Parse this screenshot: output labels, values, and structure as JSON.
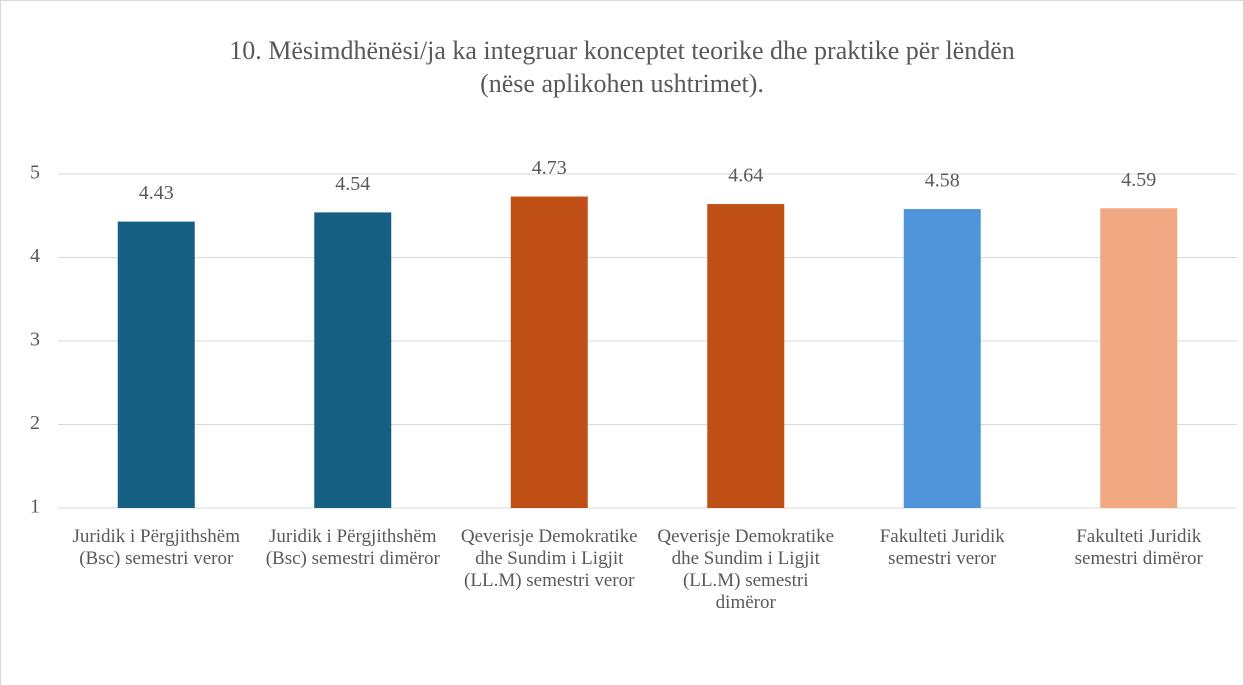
{
  "chart_data": {
    "type": "bar",
    "title": "10. Mësimdhënësi/ja ka integruar konceptet teorike dhe praktike për lëndën (nëse aplikohen ushtrimet).",
    "categories": [
      "Juridik i Përgjithshëm (Bsc) semestri veror",
      "Juridik i Përgjithshëm (Bsc) semestri dimëror",
      "Qeverisje Demokratike dhe Sundim i Ligjit (LL.M) semestri veror",
      "Qeverisje Demokratike dhe Sundim i Ligjit (LL.M) semestri dimëror",
      "Fakulteti Juridik semestri veror",
      "Fakulteti Juridik semestri dimëror"
    ],
    "values": [
      4.43,
      4.54,
      4.73,
      4.64,
      4.58,
      4.59
    ],
    "colors": [
      "#155f82",
      "#155f82",
      "#c04f15",
      "#c04f15",
      "#4e95d9",
      "#f1a983"
    ],
    "ylim": [
      1,
      5
    ],
    "yticks": [
      1,
      2,
      3,
      4,
      5
    ],
    "grid": true
  }
}
